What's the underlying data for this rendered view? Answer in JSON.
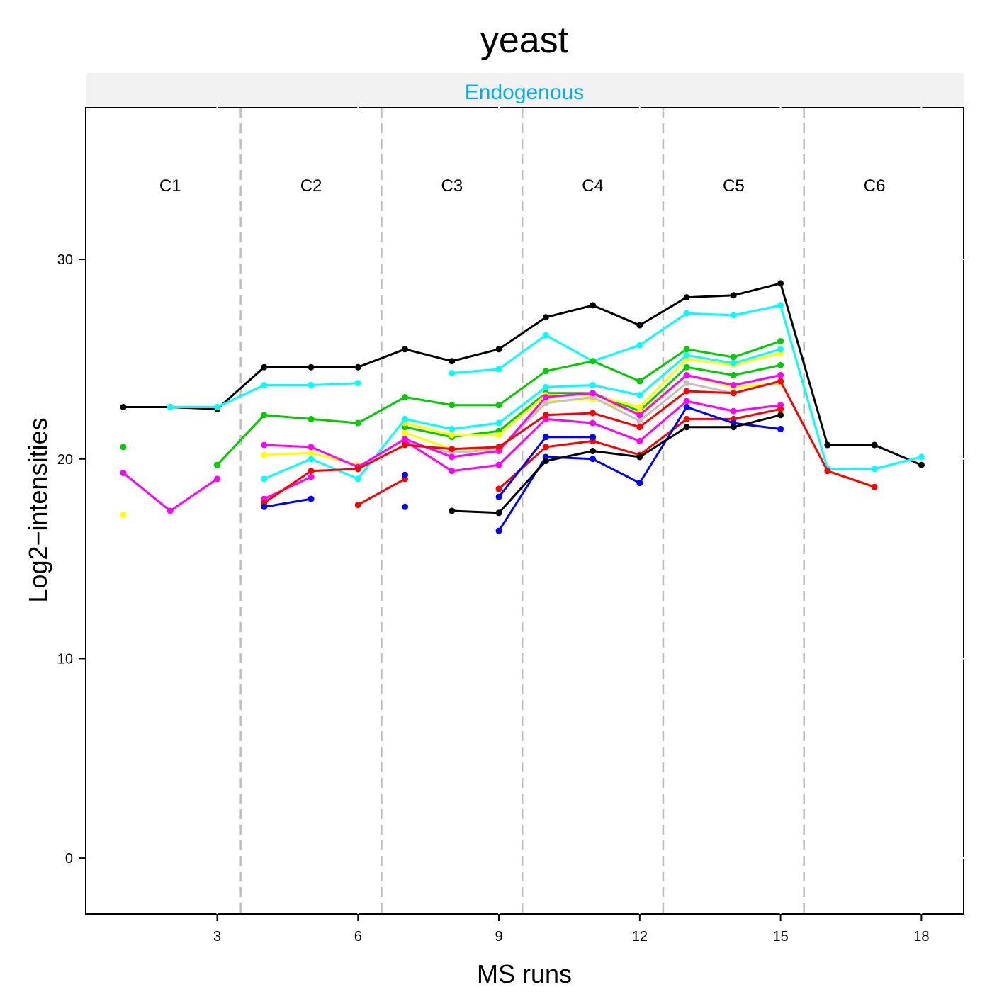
{
  "chart_data": {
    "type": "line",
    "title": "yeast",
    "panel_label": "Endogenous",
    "panel_label_color": "#00aeef",
    "xlabel": "MS runs",
    "ylabel": "Log2−intensities",
    "xlim": [
      0.2,
      18.9
    ],
    "ylim": [
      -2.8,
      37.6
    ],
    "x_ticks": [
      3,
      6,
      9,
      12,
      15,
      18
    ],
    "y_ticks": [
      0,
      10,
      20,
      30
    ],
    "conditions": [
      {
        "label": "C1",
        "center": 2
      },
      {
        "label": "C2",
        "center": 5
      },
      {
        "label": "C3",
        "center": 8
      },
      {
        "label": "C4",
        "center": 11
      },
      {
        "label": "C5",
        "center": 14
      },
      {
        "label": "C6",
        "center": 17
      }
    ],
    "condition_label_y": 33.7,
    "separators": [
      3.5,
      6.5,
      9.5,
      12.5,
      15.5
    ],
    "series": [
      {
        "color": "#000000",
        "points": [
          [
            1,
            22.6
          ],
          [
            2,
            22.6
          ],
          [
            3,
            22.5
          ],
          [
            4,
            24.6
          ],
          [
            5,
            24.6
          ],
          [
            6,
            24.6
          ],
          [
            7,
            25.5
          ],
          [
            8,
            24.9
          ],
          [
            9,
            25.5
          ],
          [
            10,
            27.1
          ],
          [
            11,
            27.7
          ],
          [
            12,
            26.7
          ],
          [
            13,
            28.1
          ],
          [
            14,
            28.2
          ],
          [
            15,
            28.8
          ],
          [
            16,
            20.7
          ],
          [
            17,
            20.7
          ],
          [
            18,
            19.7
          ]
        ]
      },
      {
        "color": "#00ffff",
        "points": [
          [
            2,
            22.6
          ],
          [
            3,
            22.6
          ],
          [
            4,
            23.7
          ],
          [
            5,
            23.7
          ],
          [
            6,
            23.8
          ],
          [
            null,
            null
          ],
          [
            8,
            24.3
          ],
          [
            9,
            24.5
          ],
          [
            10,
            26.2
          ],
          [
            11,
            24.9
          ],
          [
            12,
            25.7
          ],
          [
            13,
            27.3
          ],
          [
            14,
            27.2
          ],
          [
            15,
            27.7
          ],
          [
            16,
            19.5
          ],
          [
            17,
            19.5
          ],
          [
            18,
            20.1
          ]
        ]
      },
      {
        "color": "#00cc00",
        "points": [
          [
            1,
            20.6
          ]
        ]
      },
      {
        "color": "#00cc00",
        "points": [
          [
            3,
            19.7
          ],
          [
            4,
            22.2
          ],
          [
            5,
            22.0
          ],
          [
            6,
            21.8
          ],
          [
            7,
            23.1
          ],
          [
            8,
            22.7
          ],
          [
            9,
            22.7
          ],
          [
            10,
            24.4
          ],
          [
            11,
            24.9
          ],
          [
            12,
            23.9
          ],
          [
            13,
            25.5
          ],
          [
            14,
            25.1
          ],
          [
            15,
            25.9
          ]
        ]
      },
      {
        "color": "#00cc00",
        "points": [
          [
            7,
            21.6
          ],
          [
            8,
            21.1
          ],
          [
            9,
            21.4
          ],
          [
            10,
            23.3
          ],
          [
            11,
            23.3
          ],
          [
            12,
            22.4
          ],
          [
            13,
            24.6
          ],
          [
            14,
            24.2
          ],
          [
            15,
            24.7
          ]
        ]
      },
      {
        "color": "#ffff00",
        "points": [
          [
            1,
            17.2
          ]
        ]
      },
      {
        "color": "#ffff00",
        "points": [
          [
            4,
            20.2
          ],
          [
            5,
            20.3
          ],
          [
            6,
            19.7
          ]
        ]
      },
      {
        "color": "#ffff00",
        "points": [
          [
            7,
            21.8
          ],
          [
            8,
            21.2
          ],
          [
            9,
            21.2
          ],
          [
            10,
            23.2
          ],
          [
            11,
            23.2
          ],
          [
            12,
            22.6
          ],
          [
            13,
            25.0
          ],
          [
            14,
            24.7
          ],
          [
            15,
            25.3
          ]
        ]
      },
      {
        "color": "#ffff00",
        "points": [
          [
            7,
            21.3
          ],
          [
            8,
            20.5
          ],
          [
            9,
            20.5
          ],
          [
            10,
            22.9
          ],
          [
            11,
            23.0
          ],
          [
            12,
            22.3
          ],
          [
            13,
            24.2
          ],
          [
            14,
            23.6
          ],
          [
            15,
            23.8
          ]
        ]
      },
      {
        "color": "#00ffff",
        "points": [
          [
            4,
            19.0
          ],
          [
            5,
            20.0
          ],
          [
            6,
            19.0
          ],
          [
            7,
            22.0
          ],
          [
            8,
            21.5
          ],
          [
            9,
            21.8
          ],
          [
            10,
            23.6
          ],
          [
            11,
            23.7
          ],
          [
            12,
            23.2
          ],
          [
            13,
            25.2
          ],
          [
            14,
            24.8
          ],
          [
            15,
            25.5
          ]
        ]
      },
      {
        "color": "#c0c0c0",
        "points": [
          [
            7,
            20.8
          ],
          [
            8,
            20.3
          ],
          [
            9,
            20.5
          ],
          [
            10,
            22.8
          ],
          [
            11,
            23.1
          ],
          [
            12,
            21.9
          ],
          [
            13,
            23.8
          ],
          [
            14,
            23.3
          ],
          [
            15,
            23.9
          ]
        ]
      },
      {
        "color": "#ff00ff",
        "points": [
          [
            1,
            19.3
          ],
          [
            2,
            17.4
          ],
          [
            3,
            19.0
          ]
        ]
      },
      {
        "color": "#ff00ff",
        "points": [
          [
            4,
            20.7
          ],
          [
            5,
            20.6
          ],
          [
            6,
            19.6
          ],
          [
            7,
            21.0
          ],
          [
            8,
            20.1
          ],
          [
            9,
            20.4
          ],
          [
            10,
            23.1
          ],
          [
            11,
            23.3
          ],
          [
            12,
            22.2
          ],
          [
            13,
            24.2
          ],
          [
            14,
            23.7
          ],
          [
            15,
            24.2
          ]
        ]
      },
      {
        "color": "#ff00ff",
        "points": [
          [
            4,
            18.0
          ],
          [
            5,
            19.1
          ]
        ]
      },
      {
        "color": "#ff00ff",
        "points": [
          [
            7,
            20.9
          ],
          [
            8,
            19.4
          ],
          [
            9,
            19.7
          ],
          [
            10,
            22.0
          ],
          [
            11,
            21.8
          ],
          [
            12,
            20.9
          ],
          [
            13,
            22.9
          ],
          [
            14,
            22.4
          ],
          [
            15,
            22.7
          ]
        ]
      },
      {
        "color": "#ff0000",
        "points": [
          [
            4,
            17.8
          ],
          [
            5,
            19.4
          ],
          [
            6,
            19.5
          ],
          [
            7,
            20.7
          ],
          [
            8,
            20.5
          ],
          [
            9,
            20.6
          ],
          [
            10,
            22.2
          ],
          [
            11,
            22.3
          ],
          [
            12,
            21.6
          ],
          [
            13,
            23.4
          ],
          [
            14,
            23.3
          ],
          [
            15,
            23.9
          ],
          [
            16,
            19.4
          ],
          [
            17,
            18.6
          ]
        ]
      },
      {
        "color": "#ff0000",
        "points": [
          [
            6,
            17.7
          ],
          [
            7,
            19.0
          ]
        ]
      },
      {
        "color": "#ff0000",
        "points": [
          [
            9,
            18.5
          ],
          [
            10,
            20.6
          ],
          [
            11,
            20.9
          ],
          [
            12,
            20.2
          ],
          [
            13,
            22.0
          ],
          [
            14,
            22.0
          ],
          [
            15,
            22.5
          ]
        ]
      },
      {
        "color": "#0000ff",
        "points": [
          [
            4,
            17.6
          ],
          [
            5,
            18.0
          ]
        ]
      },
      {
        "color": "#0000ff",
        "points": [
          [
            7,
            19.2
          ]
        ]
      },
      {
        "color": "#0000ff",
        "points": [
          [
            7,
            17.6
          ]
        ]
      },
      {
        "color": "#0000ff",
        "points": [
          [
            9,
            18.1
          ],
          [
            10,
            21.1
          ],
          [
            11,
            21.1
          ]
        ]
      },
      {
        "color": "#0000ff",
        "points": [
          [
            9,
            16.4
          ],
          [
            10,
            20.1
          ],
          [
            11,
            20.0
          ],
          [
            12,
            18.8
          ],
          [
            13,
            22.6
          ],
          [
            14,
            21.8
          ],
          [
            15,
            21.5
          ]
        ]
      },
      {
        "color": "#000000",
        "points": [
          [
            8,
            17.4
          ],
          [
            9,
            17.3
          ],
          [
            10,
            19.9
          ],
          [
            11,
            20.4
          ],
          [
            12,
            20.1
          ],
          [
            13,
            21.6
          ],
          [
            14,
            21.6
          ],
          [
            15,
            22.2
          ]
        ]
      }
    ]
  }
}
